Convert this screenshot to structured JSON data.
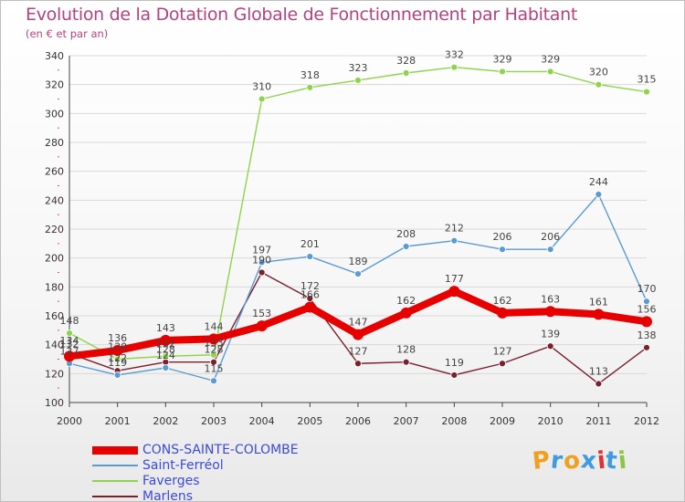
{
  "title": "Evolution de la Dotation Globale de Fonctionnement par Habitant",
  "subtitle": "(en € et par an)",
  "logo": {
    "letters": [
      "P",
      "r",
      "o",
      "x",
      "i",
      "t",
      "i"
    ],
    "colors": [
      "#f0a020",
      "#3f9ae0",
      "#f0a020",
      "#3f9ae0",
      "#e03030",
      "#3f9ae0",
      "#8cc63f"
    ]
  },
  "chart_data": {
    "type": "line",
    "title": "Evolution de la Dotation Globale de Fonctionnement par Habitant",
    "subtitle": "(en € et par an)",
    "x": [
      "2000",
      "2001",
      "2002",
      "2003",
      "2004",
      "2005",
      "2006",
      "2007",
      "2008",
      "2009",
      "2010",
      "2011",
      "2012"
    ],
    "ylim": [
      100,
      340
    ],
    "yticks": [
      100,
      120,
      140,
      160,
      180,
      200,
      220,
      240,
      260,
      280,
      300,
      320,
      340
    ],
    "grid": true,
    "legend_position": "bottom-left",
    "series": [
      {
        "name": "CONS-SAINTE-COLOMBE",
        "color": "#e60000",
        "values": [
          132,
          136,
          143,
          144,
          153,
          166,
          147,
          162,
          177,
          162,
          163,
          161,
          156
        ]
      },
      {
        "name": "Saint-Ferréol",
        "color": "#5b9bd5",
        "values": [
          127,
          119,
          124,
          115,
          197,
          201,
          189,
          208,
          212,
          206,
          206,
          244,
          170
        ]
      },
      {
        "name": "Faverges",
        "color": "#8ed44a",
        "values": [
          148,
          130,
          132,
          133,
          310,
          318,
          323,
          328,
          332,
          329,
          329,
          320,
          315
        ]
      },
      {
        "name": "Marlens",
        "color": "#7a1f2b",
        "values": [
          134,
          122,
          128,
          128,
          190,
          172,
          127,
          128,
          119,
          127,
          139,
          113,
          138
        ]
      }
    ]
  }
}
